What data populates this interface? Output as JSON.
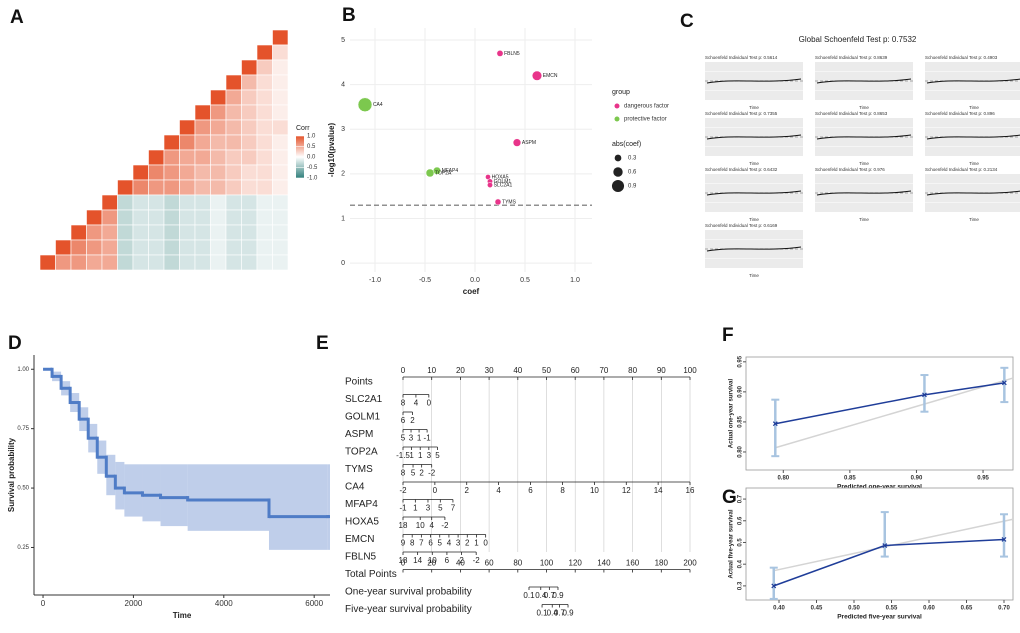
{
  "chart_data": [
    {
      "type": "heatmap",
      "panel": "A",
      "legend_title": "Corr",
      "clim": [
        -1,
        1
      ],
      "colors": {
        "low": "#2f7f7b",
        "mid": "#ffffff",
        "high": "#e4532b"
      },
      "colorbar_ticks": [
        {
          "value": 1,
          "label": "1.0"
        },
        0.5,
        {
          "value": 0,
          "label": "0.0"
        },
        -0.5,
        {
          "value": -1,
          "label": "-1.0"
        }
      ],
      "matrix": [
        [
          null,
          null,
          null,
          null,
          null,
          null,
          null,
          null,
          null,
          null,
          null,
          null,
          null,
          null,
          null,
          1
        ],
        [
          null,
          null,
          null,
          null,
          null,
          null,
          null,
          null,
          null,
          null,
          null,
          null,
          null,
          null,
          1,
          0.2
        ],
        [
          null,
          null,
          null,
          null,
          null,
          null,
          null,
          null,
          null,
          null,
          null,
          null,
          null,
          1,
          0.3,
          0.1
        ],
        [
          null,
          null,
          null,
          null,
          null,
          null,
          null,
          null,
          null,
          null,
          null,
          null,
          1,
          0.4,
          0.2,
          0.1
        ],
        [
          null,
          null,
          null,
          null,
          null,
          null,
          null,
          null,
          null,
          null,
          null,
          1,
          0.5,
          0.3,
          0.2,
          0.1
        ],
        [
          null,
          null,
          null,
          null,
          null,
          null,
          null,
          null,
          null,
          null,
          1,
          0.6,
          0.4,
          0.3,
          0.2,
          0.1
        ],
        [
          null,
          null,
          null,
          null,
          null,
          null,
          null,
          null,
          null,
          1,
          0.6,
          0.5,
          0.4,
          0.3,
          0.2,
          0.2
        ],
        [
          null,
          null,
          null,
          null,
          null,
          null,
          null,
          null,
          1,
          0.7,
          0.5,
          0.4,
          0.4,
          0.3,
          0.2,
          0.1
        ],
        [
          null,
          null,
          null,
          null,
          null,
          null,
          null,
          1,
          0.6,
          0.5,
          0.5,
          0.4,
          0.3,
          0.3,
          0.2,
          0.1
        ],
        [
          null,
          null,
          null,
          null,
          null,
          null,
          1,
          0.7,
          0.6,
          0.5,
          0.4,
          0.4,
          0.3,
          0.2,
          0.2,
          0.1
        ],
        [
          null,
          null,
          null,
          null,
          null,
          1,
          0.7,
          0.6,
          0.6,
          0.5,
          0.4,
          0.4,
          0.3,
          0.2,
          0.2,
          0.1
        ],
        [
          null,
          null,
          null,
          null,
          1,
          -0.3,
          -0.2,
          -0.2,
          -0.3,
          -0.2,
          -0.2,
          -0.1,
          -0.2,
          -0.2,
          -0.1,
          -0.1
        ],
        [
          null,
          null,
          null,
          1,
          0.6,
          -0.3,
          -0.2,
          -0.2,
          -0.3,
          -0.2,
          -0.2,
          -0.1,
          -0.2,
          -0.2,
          -0.1,
          -0.1
        ],
        [
          null,
          null,
          1,
          0.6,
          0.5,
          -0.3,
          -0.2,
          -0.2,
          -0.3,
          -0.2,
          -0.2,
          -0.1,
          -0.2,
          -0.2,
          -0.1,
          -0.1
        ],
        [
          null,
          1,
          0.7,
          0.6,
          0.5,
          -0.3,
          -0.2,
          -0.2,
          -0.3,
          -0.2,
          -0.2,
          -0.1,
          -0.2,
          -0.2,
          -0.1,
          -0.1
        ],
        [
          1,
          0.6,
          0.6,
          0.5,
          0.5,
          -0.3,
          -0.2,
          -0.2,
          -0.3,
          -0.2,
          -0.2,
          -0.1,
          -0.2,
          -0.2,
          -0.1,
          -0.1
        ]
      ]
    },
    {
      "type": "scatter",
      "panel": "B",
      "xlabel": "coef",
      "ylabel": "-log10(pvalue)",
      "xlim": [
        -1.25,
        1.17
      ],
      "ylim": [
        -0.2,
        5.27
      ],
      "xticks": [
        {
          "value": -1,
          "label": "-1.0"
        },
        -0.5,
        {
          "value": 0,
          "label": "0.0"
        },
        0.5,
        {
          "value": 1,
          "label": "1.0"
        }
      ],
      "yticks": [
        0,
        1,
        2,
        3,
        4,
        5
      ],
      "grid": true,
      "hline": 1.3,
      "legend_title": "group",
      "size_title": "abs(coef)",
      "size_ticks": [
        0.3,
        0.6,
        0.9
      ],
      "series": [
        {
          "name": "dangerous factor",
          "color": "#e8348a",
          "labels": [
            "FBLN5",
            "EMCN",
            "ASPM",
            "HOXA5",
            "GOLM1",
            "SLC2A1",
            "TYMS"
          ],
          "x": [
            0.25,
            0.62,
            0.42,
            0.13,
            0.15,
            0.15,
            0.23
          ],
          "values": [
            4.7,
            4.2,
            2.7,
            1.93,
            1.83,
            1.75,
            1.37
          ]
        },
        {
          "name": "protective factor",
          "color": "#7cc84e",
          "labels": [
            "CA4",
            "MFAP4",
            "TOP2A"
          ],
          "x": [
            -1.1,
            -0.38,
            -0.45
          ],
          "values": [
            3.55,
            2.07,
            2.02
          ]
        }
      ]
    },
    {
      "type": "schoenfeld",
      "panel": "C",
      "title": "Global Schoenfeld Test p: 0.7532",
      "xlabel": "Time",
      "subplot_titles": [
        "Schoenfeld Individual Test p: 0.5614",
        "Schoenfeld Individual Test p: 0.8639",
        "Schoenfeld Individual Test p: 0.4903",
        "Schoenfeld Individual Test p: 0.7355",
        "Schoenfeld Individual Test p: 0.8653",
        "Schoenfeld Individual Test p: 0.896",
        "Schoenfeld Individual Test p: 0.6432",
        "Schoenfeld Individual Test p: 0.976",
        "Schoenfeld Individual Test p: 0.2134",
        "Schoenfeld Individual Test p: 0.6169"
      ]
    },
    {
      "type": "survival",
      "panel": "D",
      "xlabel": "Time",
      "ylabel": "Survival probability",
      "xlim": [
        -200,
        6350
      ],
      "ylim": [
        0.05,
        1.06
      ],
      "xticks": [
        0,
        2000,
        4000,
        6000
      ],
      "yticks": [
        {
          "value": 1,
          "label": "1.00"
        },
        {
          "value": 0.75,
          "label": "0.75"
        },
        {
          "value": 0.5,
          "label": "0.50"
        },
        {
          "value": 0.25,
          "label": "0.25"
        }
      ],
      "color": "#4f7cc6",
      "band_color": "#a9bde3",
      "x": [
        0,
        200,
        400,
        600,
        800,
        1000,
        1200,
        1400,
        1600,
        1800,
        2200,
        2600,
        3200,
        5000,
        6300
      ],
      "values": [
        1,
        0.97,
        0.92,
        0.86,
        0.79,
        0.71,
        0.63,
        0.55,
        0.5,
        0.48,
        0.47,
        0.46,
        0.45,
        0.38,
        0.38
      ],
      "upper": [
        1,
        0.99,
        0.95,
        0.9,
        0.84,
        0.77,
        0.7,
        0.64,
        0.61,
        0.6,
        0.6,
        0.6,
        0.6,
        0.6,
        0.6
      ],
      "lower": [
        1,
        0.95,
        0.89,
        0.82,
        0.74,
        0.65,
        0.56,
        0.47,
        0.41,
        0.38,
        0.36,
        0.34,
        0.32,
        0.24,
        0.24
      ]
    },
    {
      "type": "nomogram",
      "panel": "E",
      "points_lim": [
        0,
        100
      ],
      "total_lim": [
        0,
        200
      ],
      "rows": [
        {
          "name": "Points",
          "scale": "points",
          "ticks": [
            0,
            10,
            20,
            30,
            40,
            50,
            60,
            70,
            80,
            90,
            100
          ]
        },
        {
          "name": "SLC2A1",
          "scale": "points",
          "ticks": [
            {
              "value": 0,
              "label": "8"
            },
            {
              "value": 4.5,
              "label": "4"
            },
            {
              "value": 9,
              "label": "0"
            }
          ]
        },
        {
          "name": "GOLM1",
          "scale": "points",
          "ticks": [
            {
              "value": 0,
              "label": "6"
            },
            {
              "value": 3.3,
              "label": "2"
            }
          ]
        },
        {
          "name": "ASPM",
          "scale": "points",
          "ticks": [
            {
              "value": 0,
              "label": "5"
            },
            {
              "value": 2.8,
              "label": "3"
            },
            {
              "value": 5.6,
              "label": "1"
            },
            {
              "value": 8.4,
              "label": "-1"
            }
          ]
        },
        {
          "name": "TOP2A",
          "scale": "points",
          "ticks": [
            {
              "value": 0,
              "label": "-1.5"
            },
            {
              "value": 3,
              "label": "1"
            },
            {
              "value": 6,
              "label": "1"
            },
            {
              "value": 9,
              "label": "3"
            },
            {
              "value": 12,
              "label": "5"
            }
          ]
        },
        {
          "name": "TYMS",
          "scale": "points",
          "ticks": [
            {
              "value": 0,
              "label": "8"
            },
            {
              "value": 3.5,
              "label": "5"
            },
            {
              "value": 6.5,
              "label": "2"
            },
            {
              "value": 10,
              "label": "-2"
            }
          ]
        },
        {
          "name": "CA4",
          "scale": "points",
          "ticks": [
            {
              "value": 0,
              "label": "-2"
            },
            {
              "value": 11.1,
              "label": "0"
            },
            {
              "value": 22.2,
              "label": "2"
            },
            {
              "value": 33.3,
              "label": "4"
            },
            {
              "value": 44.4,
              "label": "6"
            },
            {
              "value": 55.6,
              "label": "8"
            },
            {
              "value": 66.7,
              "label": "10"
            },
            {
              "value": 77.8,
              "label": "12"
            },
            {
              "value": 88.9,
              "label": "14"
            },
            {
              "value": 100,
              "label": "16"
            }
          ]
        },
        {
          "name": "MFAP4",
          "scale": "points",
          "ticks": [
            {
              "value": 0,
              "label": "-1"
            },
            {
              "value": 4.3,
              "label": "1"
            },
            {
              "value": 8.7,
              "label": "3"
            },
            {
              "value": 13,
              "label": "5"
            },
            {
              "value": 17.4,
              "label": "7"
            }
          ]
        },
        {
          "name": "HOXA5",
          "scale": "points",
          "ticks": [
            {
              "value": 0,
              "label": "18"
            },
            {
              "value": 6,
              "label": "10"
            },
            {
              "value": 10,
              "label": "4"
            },
            {
              "value": 14.6,
              "label": "-2"
            }
          ]
        },
        {
          "name": "EMCN",
          "scale": "points",
          "ticks": [
            {
              "value": 0,
              "label": "9"
            },
            {
              "value": 3.2,
              "label": "8"
            },
            {
              "value": 6.4,
              "label": "7"
            },
            {
              "value": 9.6,
              "label": "6"
            },
            {
              "value": 12.8,
              "label": "5"
            },
            {
              "value": 16,
              "label": "4"
            },
            {
              "value": 19.2,
              "label": "3"
            },
            {
              "value": 22.4,
              "label": "2"
            },
            {
              "value": 25.6,
              "label": "1"
            },
            {
              "value": 28.8,
              "label": "0"
            }
          ]
        },
        {
          "name": "FBLN5",
          "scale": "points",
          "ticks": [
            {
              "value": 0,
              "label": "18"
            },
            {
              "value": 5.1,
              "label": "14"
            },
            {
              "value": 10.2,
              "label": "10"
            },
            {
              "value": 15.3,
              "label": "6"
            },
            {
              "value": 20.4,
              "label": "2"
            },
            {
              "value": 25.5,
              "label": "-2"
            }
          ]
        },
        {
          "name": "Total Points",
          "scale": "total",
          "ticks": [
            0,
            20,
            40,
            60,
            80,
            100,
            120,
            140,
            160,
            180,
            200
          ]
        },
        {
          "name": "One-year survival probability",
          "scale": "total",
          "ticks": [
            {
              "value": 87.8,
              "label": "0.1"
            },
            {
              "value": 96,
              "label": "0.4"
            },
            {
              "value": 102,
              "label": "0.7"
            },
            {
              "value": 108,
              "label": "0.9"
            }
          ]
        },
        {
          "name": "Five-year survival probability",
          "scale": "total",
          "ticks": [
            {
              "value": 96.9,
              "label": "0.1"
            },
            {
              "value": 104,
              "label": "0.4"
            },
            {
              "value": 109,
              "label": "0.7"
            },
            {
              "value": 115,
              "label": "0.9"
            }
          ]
        }
      ]
    },
    {
      "type": "calibration",
      "panel": "F",
      "xlabel": "Predicted one-year survival",
      "ylabel": "Actual one-year survival",
      "xlim": [
        0.772,
        0.9725
      ],
      "ylim": [
        0.77,
        0.958
      ],
      "xticks": [
        {
          "value": 0.8,
          "label": "0.80"
        },
        0.85,
        {
          "value": 0.9,
          "label": "0.90"
        },
        0.95
      ],
      "yticks": [
        {
          "value": 0.8,
          "label": "0.80"
        },
        0.85,
        {
          "value": 0.9,
          "label": "0.90"
        },
        0.95
      ],
      "color": "#1f3d99",
      "error_color": "#a8c4e0",
      "reference_color": "#d4d4d4",
      "x": [
        0.794,
        0.906,
        0.966
      ],
      "values": [
        0.847,
        0.895,
        0.915
      ],
      "lower": [
        0.793,
        0.867,
        0.883
      ],
      "upper": [
        0.887,
        0.928,
        0.94
      ],
      "reference": {
        "x": [
          0.794,
          0.9725
        ],
        "values": [
          0.807,
          0.923
        ]
      }
    },
    {
      "type": "calibration",
      "panel": "G",
      "xlabel": "Predicted five-year survival",
      "ylabel": "Actual five-year survival",
      "xlim": [
        0.356,
        0.712
      ],
      "ylim": [
        0.235,
        0.751
      ],
      "xticks": [
        {
          "value": 0.4,
          "label": "0.40"
        },
        0.45,
        {
          "value": 0.5,
          "label": "0.50"
        },
        0.55,
        {
          "value": 0.6,
          "label": "0.60"
        },
        0.65,
        {
          "value": 0.7,
          "label": "0.70"
        }
      ],
      "yticks": [
        0.3,
        0.4,
        0.5,
        0.6,
        0.7
      ],
      "color": "#1f3d99",
      "error_color": "#a8c4e0",
      "reference_color": "#d4d4d4",
      "x": [
        0.393,
        0.541,
        0.7
      ],
      "values": [
        0.3,
        0.486,
        0.514
      ],
      "lower": [
        0.24,
        0.435,
        0.435
      ],
      "upper": [
        0.384,
        0.64,
        0.63
      ],
      "reference": {
        "x": [
          0.393,
          0.712
        ],
        "values": [
          0.37,
          0.607
        ]
      }
    }
  ]
}
